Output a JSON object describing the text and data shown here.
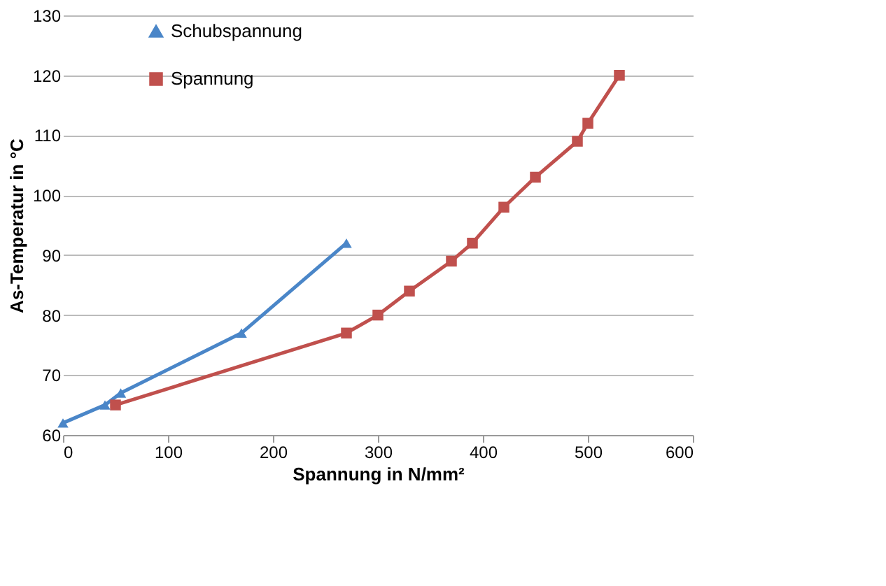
{
  "chart_data": {
    "type": "line",
    "xlabel": "Spannung in N/mm²",
    "ylabel": "As-Temperatur in °C",
    "xlim": [
      0,
      600
    ],
    "xticks": [
      0,
      100,
      200,
      300,
      400,
      500,
      600
    ],
    "ylim": [
      60,
      130
    ],
    "yticks": [
      60,
      70,
      80,
      90,
      100,
      110,
      120,
      130
    ],
    "grid": "y",
    "legend": "top left",
    "line_style": "solid",
    "series": [
      {
        "name": "Schubspannung",
        "color": "#4a86c8",
        "marker": "triangle",
        "x": [
          0,
          40,
          55,
          170,
          270
        ],
        "values": [
          62,
          65,
          67,
          77,
          92
        ]
      },
      {
        "name": "Spannung",
        "color": "#c0504d",
        "marker": "square",
        "x": [
          50,
          270,
          300,
          330,
          370,
          390,
          420,
          450,
          490,
          500,
          530
        ],
        "values": [
          65,
          77,
          80,
          84,
          89,
          92,
          98,
          103,
          109,
          112,
          120
        ]
      }
    ]
  }
}
